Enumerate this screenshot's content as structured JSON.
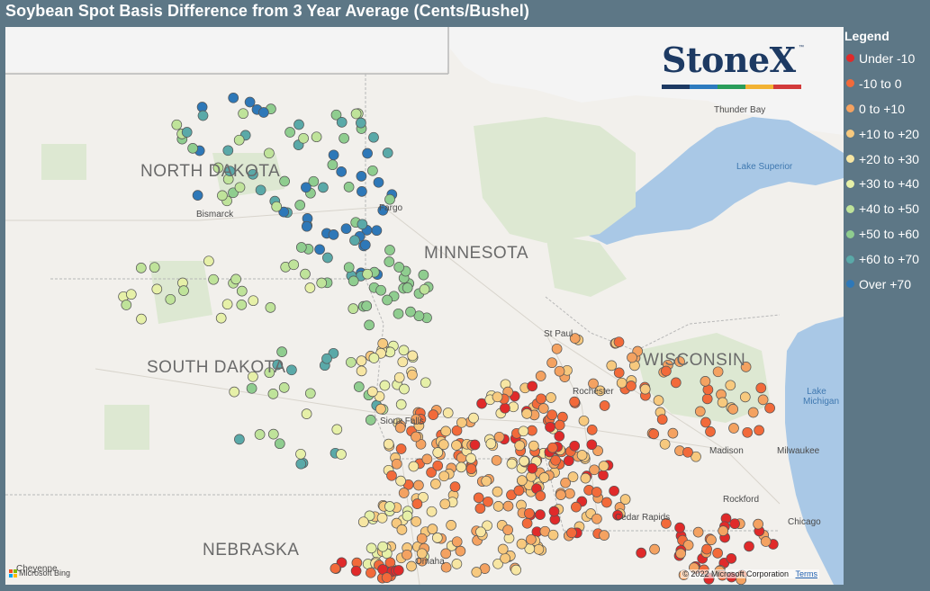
{
  "title": "Soybean Spot Basis Difference from 3 Year Average (Cents/Bushel)",
  "logo": {
    "text": "StoneX",
    "tm": "™",
    "stripe_colors": [
      "#1d3a63",
      "#2d7bbf",
      "#2a9d5a",
      "#f2b233",
      "#d23a3a"
    ]
  },
  "legend": {
    "title": "Legend",
    "items": [
      {
        "label": "Under -10",
        "color": "#e02a2a"
      },
      {
        "label": "-10 to 0",
        "color": "#f26a3a"
      },
      {
        "label": "0 to +10",
        "color": "#f4a261"
      },
      {
        "label": "+10 to +20",
        "color": "#f7c97e"
      },
      {
        "label": "+20 to +30",
        "color": "#f7e6a3"
      },
      {
        "label": "+30 to +40",
        "color": "#e6f0a8"
      },
      {
        "label": "+40 to +50",
        "color": "#bfe39a"
      },
      {
        "label": "+50 to +60",
        "color": "#8fcd8f"
      },
      {
        "label": "+60 to +70",
        "color": "#5aa9a8"
      },
      {
        "label": "Over +70",
        "color": "#2e78b8"
      }
    ]
  },
  "map": {
    "states": [
      "NORTH DAKOTA",
      "SOUTH DAKOTA",
      "MINNESOTA",
      "WISCONSIN",
      "NEBRASKA"
    ],
    "cities": [
      "Bismarck",
      "Fargo",
      "St Paul",
      "Rochester",
      "Sioux Falls",
      "Madison",
      "Milwaukee",
      "Rockford",
      "Chicago",
      "Cedar Rapids",
      "Omaha",
      "Cheyenne",
      "Thunder Bay"
    ],
    "water": [
      "Lake Superior",
      "Lake Michigan"
    ],
    "attribution": "Microsoft Bing",
    "copyright": "© 2022 Microsoft Corporation",
    "terms": "Terms"
  }
}
